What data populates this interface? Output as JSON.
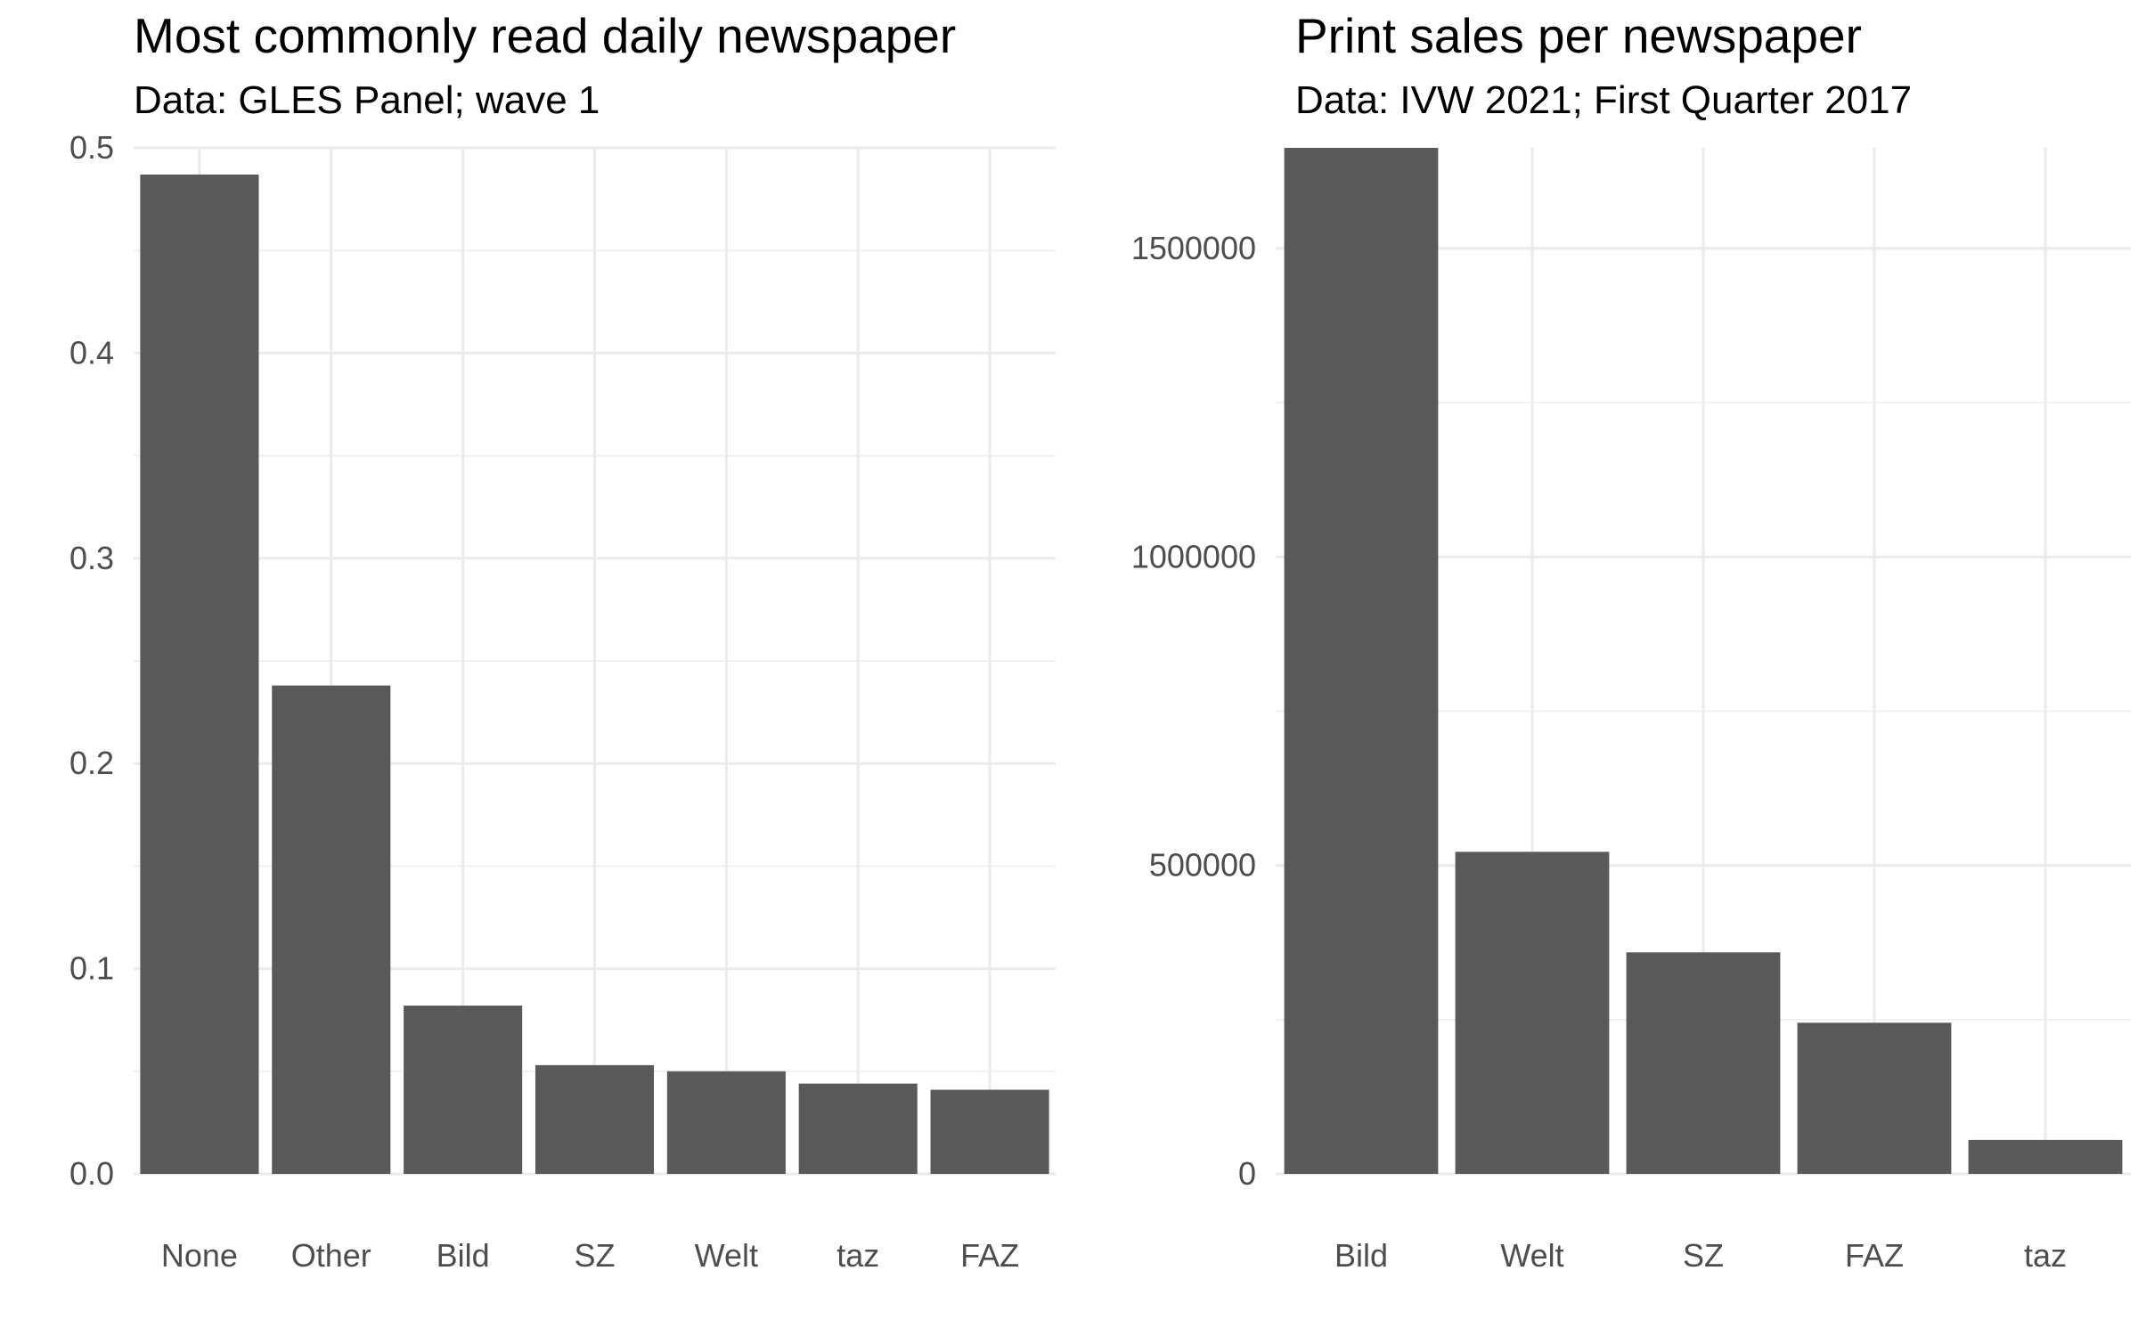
{
  "chart_data": [
    {
      "type": "bar",
      "title": "Most commonly read daily newspaper",
      "subtitle": "Data: GLES Panel; wave 1",
      "xlabel": "",
      "ylabel": "",
      "categories": [
        "None",
        "Other",
        "Bild",
        "SZ",
        "Welt",
        "taz",
        "FAZ"
      ],
      "values": [
        0.487,
        0.238,
        0.082,
        0.053,
        0.05,
        0.044,
        0.041
      ],
      "ylim": [
        0,
        0.5
      ],
      "yticks": [
        0.0,
        0.1,
        0.2,
        0.3,
        0.4,
        0.5
      ],
      "ytick_labels": [
        "0.0",
        "0.1",
        "0.2",
        "0.3",
        "0.4",
        "0.5"
      ],
      "bar_color": "#595959",
      "grid": true
    },
    {
      "type": "bar",
      "title": "Print sales per newspaper",
      "subtitle": "Data: IVW 2021; First Quarter 2017",
      "xlabel": "",
      "ylabel": "",
      "categories": [
        "Bild",
        "Welt",
        "SZ",
        "FAZ",
        "taz"
      ],
      "values": [
        1663000,
        522000,
        359000,
        245000,
        55000
      ],
      "ylim": [
        0,
        1663000
      ],
      "yticks": [
        0,
        500000,
        1000000,
        1500000
      ],
      "ytick_labels": [
        "0",
        "500000",
        "1000000",
        "1500000"
      ],
      "bar_color": "#595959",
      "grid": true
    }
  ]
}
